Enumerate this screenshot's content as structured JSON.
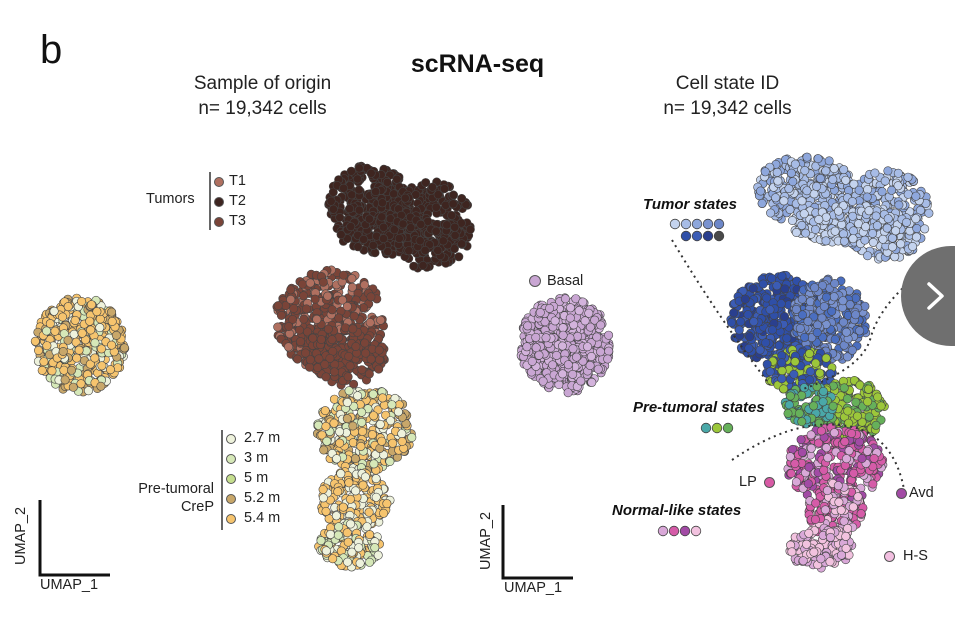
{
  "figure": {
    "panel_letter": "b",
    "title": "scRNA-seq"
  },
  "left_panel": {
    "title": "Sample of origin",
    "count": "n= 19,342 cells",
    "tumors_label": "Tumors",
    "tumor_items": [
      {
        "label": "T1",
        "color": "#b07060"
      },
      {
        "label": "T2",
        "color": "#3e2520"
      },
      {
        "label": "T3",
        "color": "#7a4438"
      }
    ],
    "pretumoral_label_1": "Pre-tumoral",
    "pretumoral_label_2": "CreP",
    "pretumoral_items": [
      {
        "label": "2.7 m",
        "color": "#eef2dc"
      },
      {
        "label": "3 m",
        "color": "#d6e8b8"
      },
      {
        "label": "5 m",
        "color": "#c5de8e"
      },
      {
        "label": "5.2 m",
        "color": "#c8a76a"
      },
      {
        "label": "5.4 m",
        "color": "#f6c46e"
      }
    ],
    "axis_y": "UMAP_2",
    "axis_x": "UMAP_1"
  },
  "right_panel": {
    "title": "Cell state ID",
    "count": "n= 19,342 cells",
    "basal_label": "Basal",
    "basal_color": "#c9a6d3",
    "tumor_states_title": "Tumor states",
    "tumor_state_colors": [
      "#c4d3ee",
      "#a7bce6",
      "#8ea7dc",
      "#7a93d0",
      "#6d87c8",
      "#2f4fa8",
      "#3b5cb5",
      "#2a3f8e",
      "#4a4a4a"
    ],
    "pretumoral_states_title": "Pre-tumoral states",
    "pretumoral_state_colors": [
      "#4aa8a8",
      "#9cc73a",
      "#66b05a"
    ],
    "normal_states_title": "Normal-like states",
    "normal_state_colors": [
      "#d9a8d8",
      "#d55ba8",
      "#a24aa5",
      "#f2c2df"
    ],
    "lp_label": "LP",
    "lp_color": "#d85aa5",
    "avd_label": "Avd",
    "avd_color": "#a24aa5",
    "hs_label": "H-S",
    "hs_color": "#f2bfe0",
    "axis_y": "UMAP_2",
    "axis_x": "UMAP_1"
  },
  "navigation": {
    "next_icon": "chevron-right-icon"
  }
}
